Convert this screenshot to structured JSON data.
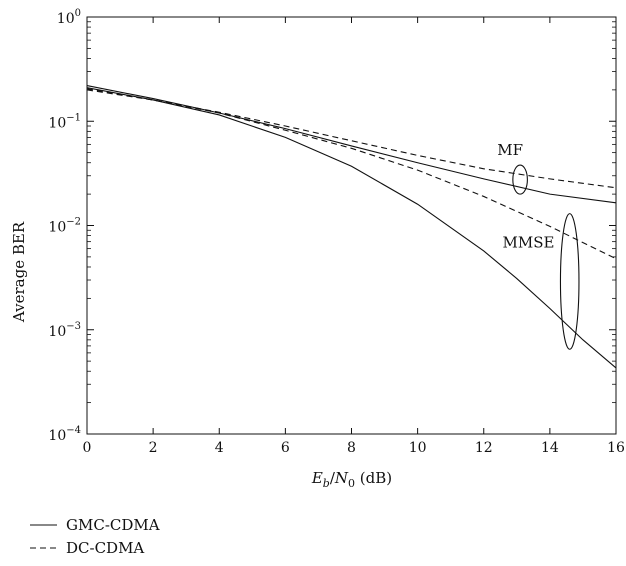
{
  "chart_data": {
    "type": "line",
    "xlabel": {
      "E": "E",
      "b_sub": "b",
      "slash": "/",
      "N": "N",
      "zero_sub": "0",
      "unit": " (dB)"
    },
    "ylabel": "Average BER",
    "xlim": [
      0,
      16
    ],
    "ylim": [
      0.0001,
      1
    ],
    "yscale": "log",
    "x_ticks": [
      0,
      2,
      4,
      6,
      8,
      10,
      12,
      14,
      16
    ],
    "x_tick_labels": [
      "0",
      "2",
      "4",
      "6",
      "8",
      "10",
      "12",
      "14",
      "16"
    ],
    "y_ticks": [
      {
        "value": 1,
        "base": "10",
        "exp": "0"
      },
      {
        "value": 0.1,
        "base": "10",
        "exp": "−1"
      },
      {
        "value": 0.01,
        "base": "10",
        "exp": "−2"
      },
      {
        "value": 0.001,
        "base": "10",
        "exp": "−3"
      },
      {
        "value": 0.0001,
        "base": "10",
        "exp": "−4"
      }
    ],
    "grid": false,
    "legend_position": "bottom-left-outside",
    "series": [
      {
        "name": "GMC-CDMA",
        "group": "MF",
        "style": "solid",
        "x": [
          0,
          2,
          4,
          6,
          8,
          10,
          12,
          14,
          16
        ],
        "y": [
          0.22,
          0.165,
          0.12,
          0.085,
          0.058,
          0.04,
          0.028,
          0.02,
          0.0165
        ]
      },
      {
        "name": "DC-CDMA",
        "group": "MF",
        "style": "dashed",
        "x": [
          0,
          2,
          4,
          6,
          8,
          10,
          12,
          14,
          16
        ],
        "y": [
          0.205,
          0.16,
          0.122,
          0.09,
          0.065,
          0.047,
          0.035,
          0.028,
          0.023
        ]
      },
      {
        "name": "GMC-CDMA",
        "group": "MMSE",
        "style": "solid",
        "x": [
          0,
          2,
          4,
          6,
          8,
          10,
          12,
          13,
          14,
          15,
          16
        ],
        "y": [
          0.21,
          0.16,
          0.115,
          0.07,
          0.037,
          0.016,
          0.0057,
          0.0031,
          0.0016,
          0.0008,
          0.00043
        ]
      },
      {
        "name": "DC-CDMA",
        "group": "MMSE",
        "style": "dashed",
        "x": [
          0,
          2,
          4,
          6,
          8,
          10,
          12,
          14,
          16
        ],
        "y": [
          0.2,
          0.16,
          0.12,
          0.082,
          0.055,
          0.034,
          0.019,
          0.0098,
          0.0048
        ]
      }
    ],
    "annotations": [
      {
        "text": "MF",
        "ellipse": {
          "cx": 13.1,
          "cy": 0.028,
          "rx": 0.22,
          "y_top": 0.038,
          "y_bottom": 0.02
        }
      },
      {
        "text": "MMSE",
        "ellipse": {
          "cx": 14.6,
          "cy": 0.0035,
          "rx": 0.28,
          "y_top": 0.013,
          "y_bottom": 0.00065
        }
      }
    ],
    "legend": [
      {
        "label": "GMC-CDMA",
        "style": "solid"
      },
      {
        "label": "DC-CDMA",
        "style": "dashed"
      }
    ]
  }
}
